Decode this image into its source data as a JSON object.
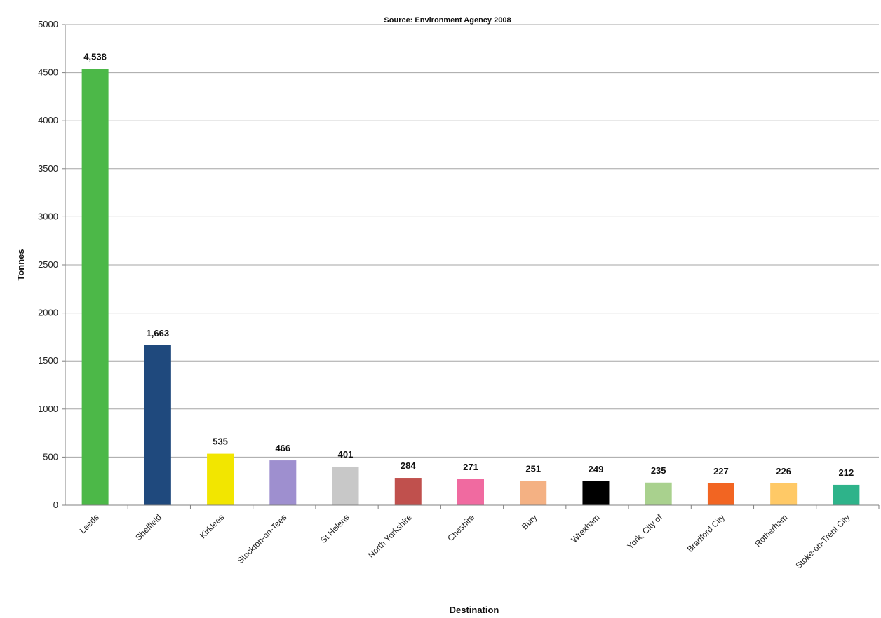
{
  "chart_data": {
    "type": "bar",
    "title": "Source: Environment Agency 2008",
    "xlabel": "Destination",
    "ylabel": "Tonnes",
    "ylim": [
      0,
      5000
    ],
    "yticks": [
      0,
      500,
      1000,
      1500,
      2000,
      2500,
      3000,
      3500,
      4000,
      4500,
      5000
    ],
    "grid": true,
    "legend": "none",
    "categories": [
      "Leeds",
      "Sheffield",
      "Kirklees",
      "Stockton-on-Tees",
      "St Helens",
      "North Yorkshire",
      "Cheshire",
      "Bury",
      "Wrexham",
      "York, City of",
      "Bradford City",
      "Rotherham",
      "Stoke-on-Trent City"
    ],
    "values": [
      4538,
      1663,
      535,
      466,
      401,
      284,
      271,
      251,
      249,
      235,
      227,
      226,
      212
    ],
    "value_labels": [
      "4,538",
      "1,663",
      "535",
      "466",
      "401",
      "284",
      "271",
      "251",
      "249",
      "235",
      "227",
      "226",
      "212"
    ],
    "colors": [
      "#4cb848",
      "#1f497d",
      "#f2e600",
      "#9e8fcf",
      "#c8c8c8",
      "#c0504d",
      "#f06aa0",
      "#f4b183",
      "#000000",
      "#a9d18e",
      "#f26522",
      "#ffc966",
      "#2eb38a"
    ]
  }
}
